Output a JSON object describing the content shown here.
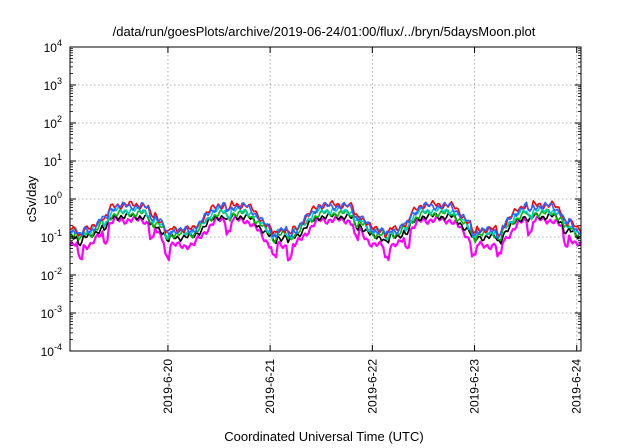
{
  "chart_data": {
    "type": "line",
    "title": "/data/run/goesPlots/archive/2019-06-24/01:00/flux/../bryn/5daysMoon.plot",
    "xlabel": "Coordinated Universal Time (UTC)",
    "ylabel": "cSv/day",
    "yscale": "log",
    "ylim": [
      0.0001,
      10000
    ],
    "y_tick_labels": [
      {
        "base": "10",
        "exp": "-4",
        "value": 0.0001
      },
      {
        "base": "10",
        "exp": "-3",
        "value": 0.001
      },
      {
        "base": "10",
        "exp": "-2",
        "value": 0.01
      },
      {
        "base": "10",
        "exp": "-1",
        "value": 0.1
      },
      {
        "base": "10",
        "exp": "0",
        "value": 1
      },
      {
        "base": "10",
        "exp": "1",
        "value": 10
      },
      {
        "base": "10",
        "exp": "2",
        "value": 100
      },
      {
        "base": "10",
        "exp": "3",
        "value": 1000
      },
      {
        "base": "10",
        "exp": "4",
        "value": 10000
      }
    ],
    "xlim": [
      "2019-06-19T01:00",
      "2019-06-24T01:00"
    ],
    "x_ticks": [
      {
        "label": "2019-6-20",
        "value": "2019-06-20T00:00"
      },
      {
        "label": "2019-6-21",
        "value": "2019-06-21T00:00"
      },
      {
        "label": "2019-6-22",
        "value": "2019-06-22T00:00"
      },
      {
        "label": "2019-6-23",
        "value": "2019-06-23T00:00"
      },
      {
        "label": "2019-6-24",
        "value": "2019-06-24T00:00"
      }
    ],
    "grid": true,
    "series_colors": [
      "#ff00ff",
      "#000000",
      "#00bb00",
      "#00cccc",
      "#ff0000",
      "#3060ff"
    ],
    "series_level_ranges": [
      {
        "color": "#ff00ff",
        "low": 0.06,
        "high": 0.28
      },
      {
        "color": "#000000",
        "low": 0.1,
        "high": 0.35
      },
      {
        "color": "#00bb00",
        "low": 0.12,
        "high": 0.42
      },
      {
        "color": "#00cccc",
        "low": 0.14,
        "high": 0.5
      },
      {
        "color": "#ff0000",
        "low": 0.16,
        "high": 0.7
      },
      {
        "color": "#3060ff",
        "low": 0.15,
        "high": 0.65
      }
    ]
  }
}
